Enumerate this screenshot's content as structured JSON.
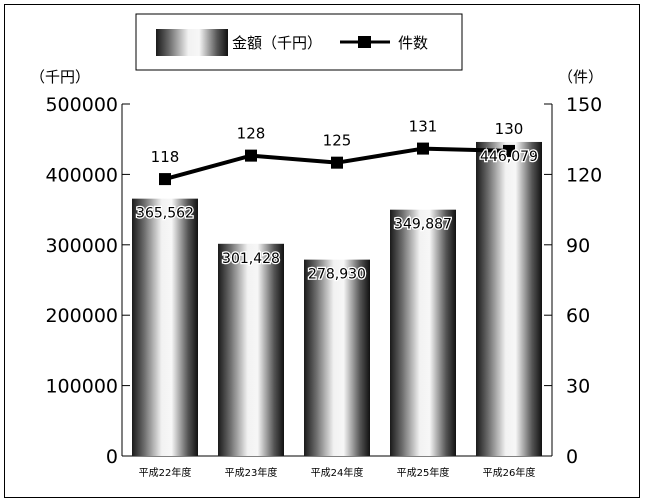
{
  "chart_data": {
    "type": "bar",
    "categories": [
      "平成22年度",
      "平成23年度",
      "平成24年度",
      "平成25年度",
      "平成26年度"
    ],
    "series": [
      {
        "name": "金額（千円）",
        "type": "bar",
        "axis": "left",
        "values": [
          365562,
          301428,
          278930,
          349887,
          446079
        ],
        "labels": [
          "365,562",
          "301,428",
          "278,930",
          "349,887",
          "446,079"
        ]
      },
      {
        "name": "件数",
        "type": "line",
        "axis": "right",
        "values": [
          118,
          128,
          125,
          131,
          130
        ],
        "labels": [
          "118",
          "128",
          "125",
          "131",
          "130"
        ]
      }
    ],
    "y_left": {
      "unit": "（千円）",
      "ylim": [
        0,
        500000
      ],
      "ticks": [
        "0",
        "100000",
        "200000",
        "300000",
        "400000",
        "500000"
      ]
    },
    "y_right": {
      "unit": "（件）",
      "ylim": [
        0,
        150
      ],
      "ticks": [
        "0",
        "30",
        "60",
        "90",
        "120",
        "150"
      ]
    },
    "legend": {
      "position": "top-center"
    },
    "grid": false
  }
}
